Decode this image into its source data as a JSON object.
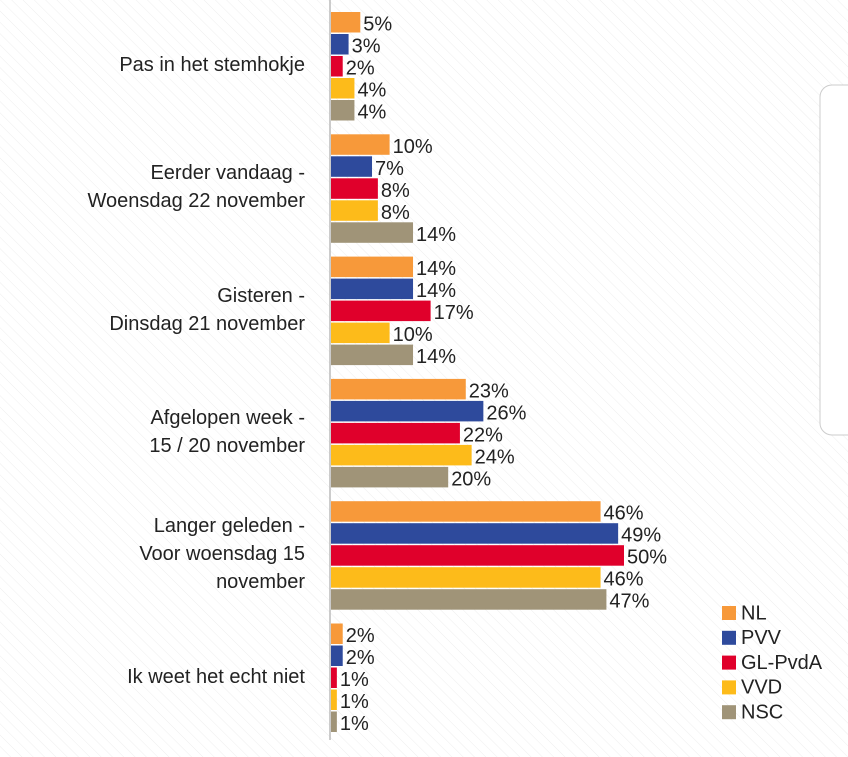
{
  "chart_data": {
    "type": "bar",
    "orientation": "horizontal",
    "categories": [
      "Pas in het stemhokje",
      "Eerder vandaag -\nWoensdag 22 november",
      "Gisteren -\nDinsdag 21 november",
      "Afgelopen week -\n15 / 20 november",
      "Langer geleden -\nVoor woensdag 15\nnovember",
      "Ik weet het echt niet"
    ],
    "series": [
      {
        "name": "NL",
        "color": "#f7993a",
        "values": [
          5,
          10,
          14,
          23,
          46,
          2
        ],
        "value_labels": [
          "5%",
          "10%",
          "14%",
          "23%",
          "46%",
          "2%"
        ]
      },
      {
        "name": "PVV",
        "color": "#2e4a9c",
        "values": [
          3,
          7,
          14,
          26,
          49,
          2
        ],
        "value_labels": [
          "3%",
          "7%",
          "14%",
          "26%",
          "49%",
          "2%"
        ]
      },
      {
        "name": "GL-PvdA",
        "color": "#e0002b",
        "values": [
          2,
          8,
          17,
          22,
          50,
          1
        ],
        "value_labels": [
          "2%",
          "8%",
          "17%",
          "22%",
          "50%",
          "1%"
        ]
      },
      {
        "name": "VVD",
        "color": "#fdbb1a",
        "values": [
          4,
          8,
          10,
          24,
          46,
          1
        ],
        "value_labels": [
          "4%",
          "8%",
          "10%",
          "24%",
          "46%",
          "1%"
        ]
      },
      {
        "name": "NSC",
        "color": "#a09478",
        "values": [
          4,
          14,
          14,
          20,
          47,
          1
        ],
        "value_labels": [
          "4%",
          "14%",
          "14%",
          "20%",
          "47%",
          "1%"
        ]
      }
    ],
    "legend": "bottom-right"
  }
}
